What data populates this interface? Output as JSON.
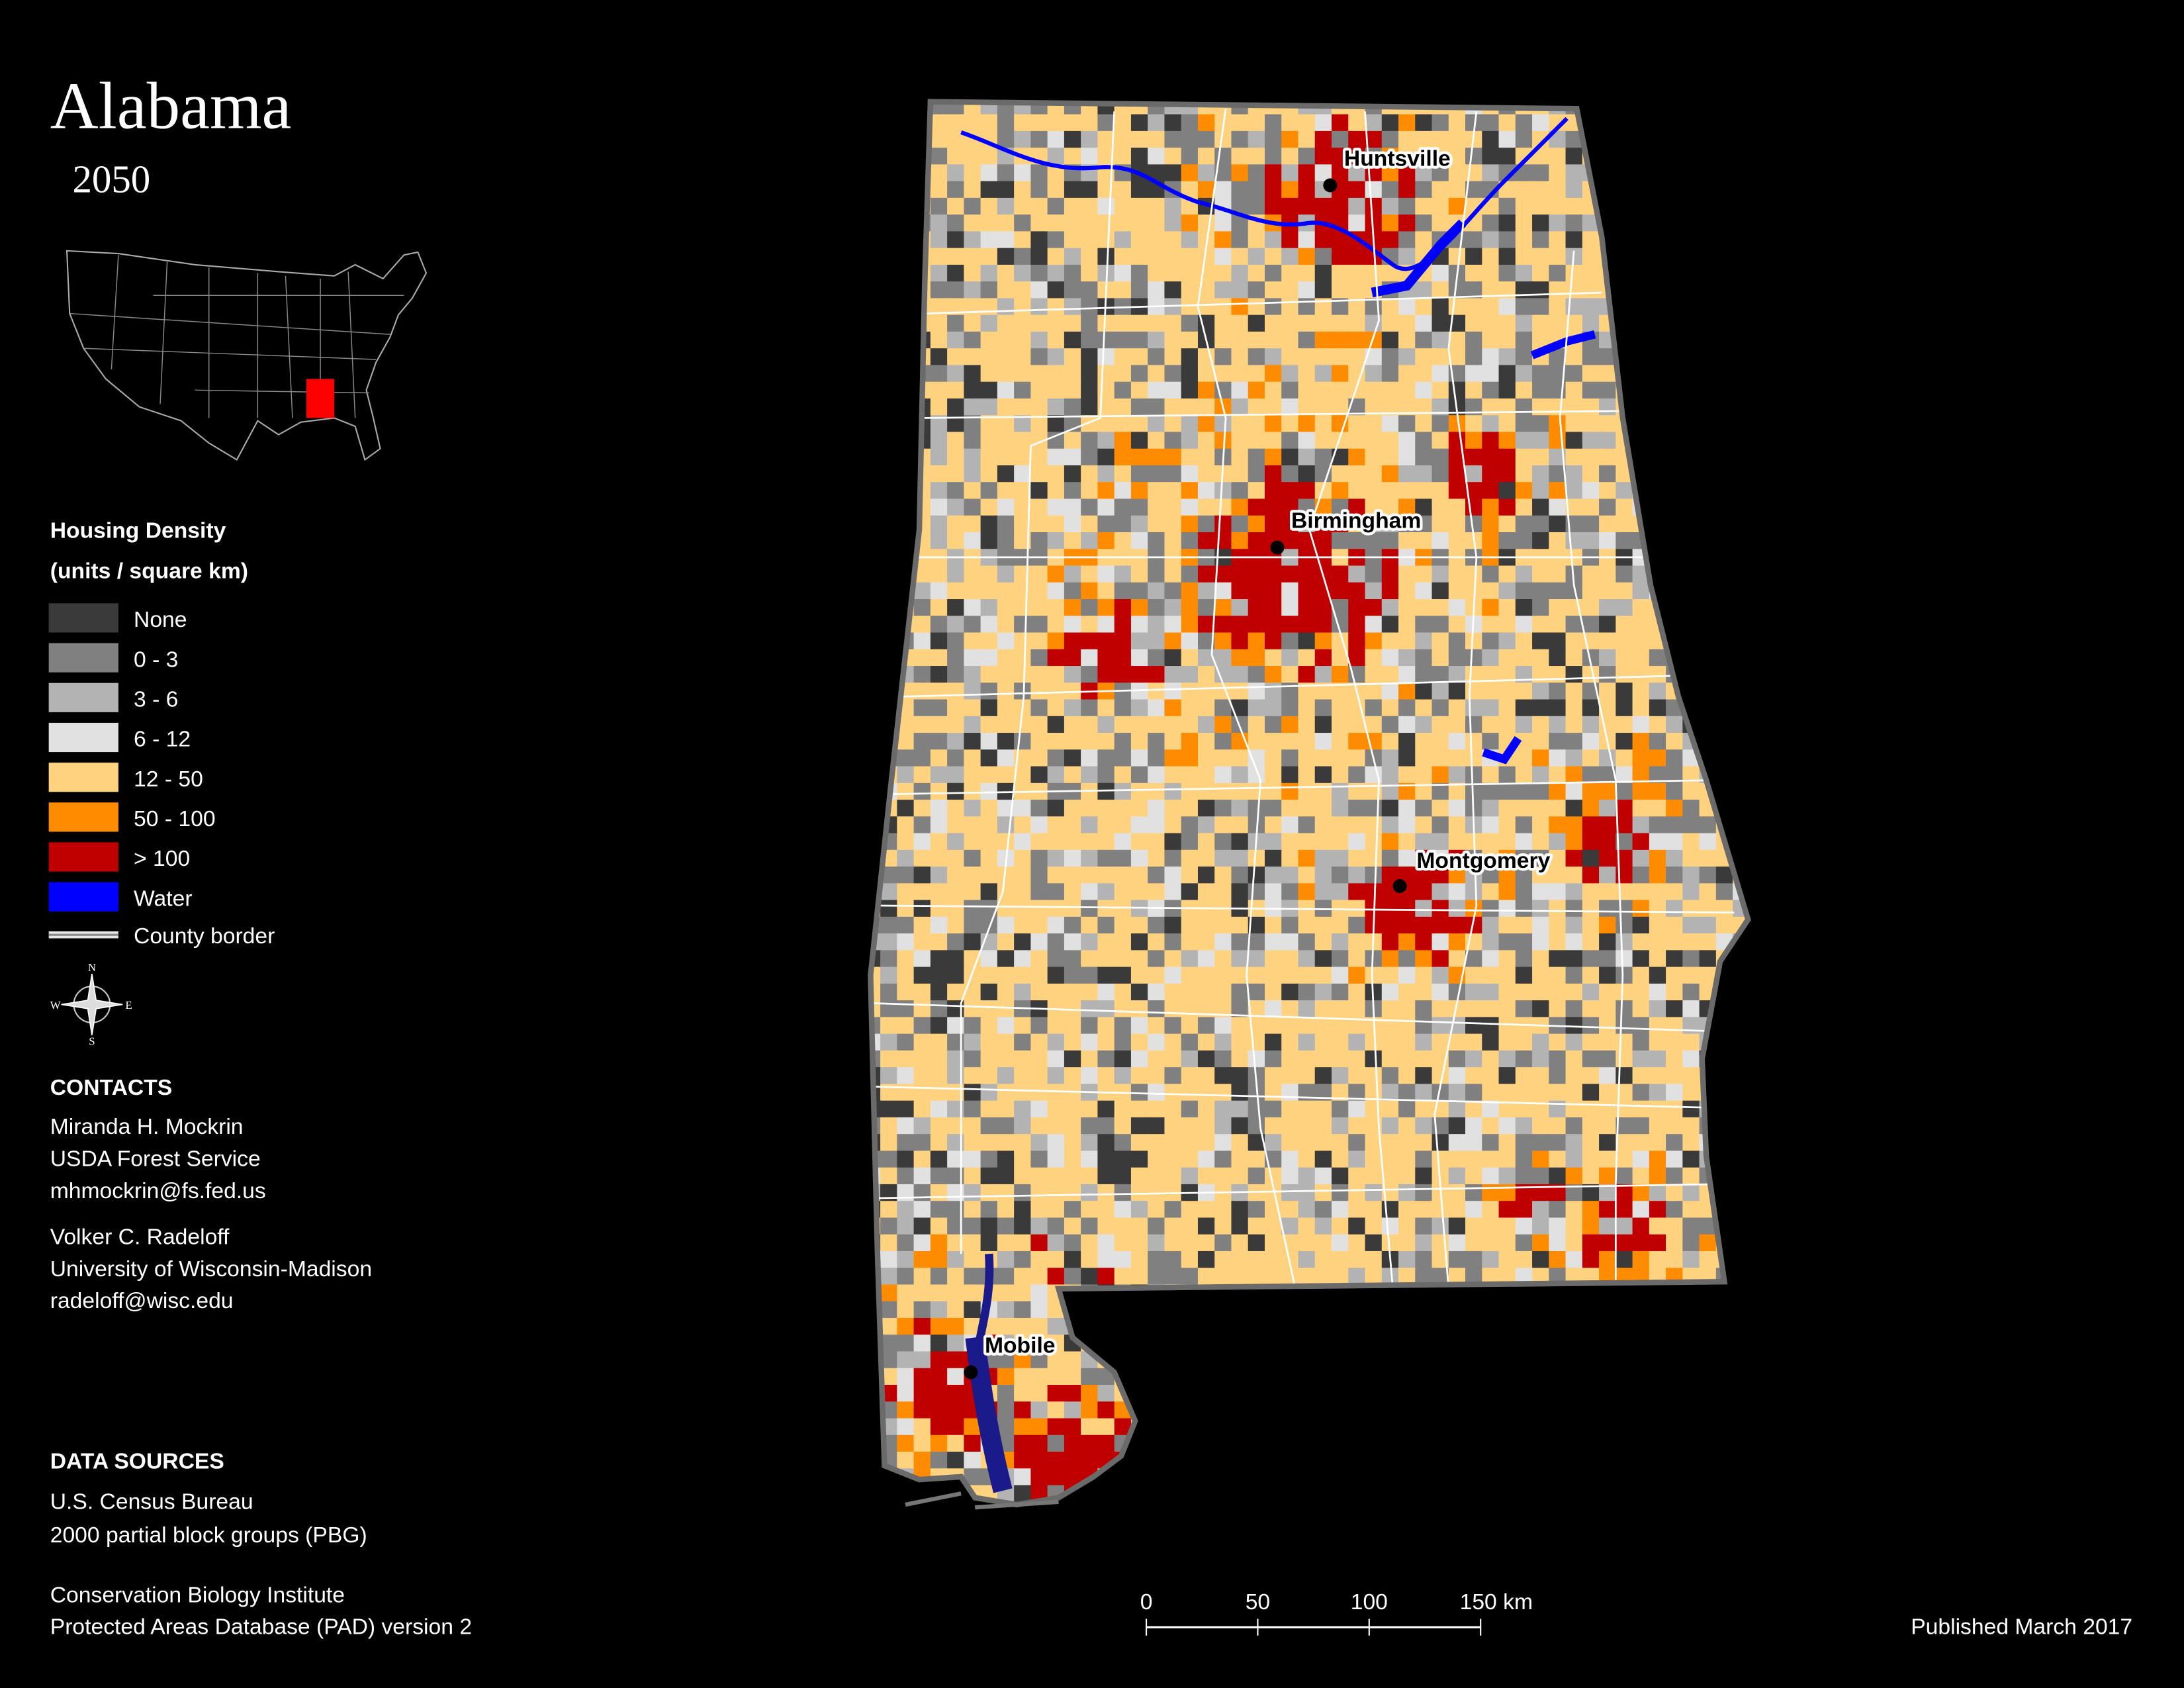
{
  "title": "Alabama",
  "subtitle": "2050",
  "legend": {
    "title": "Housing Density",
    "units": "(units / square km)",
    "items": [
      {
        "label": "None",
        "color": "#3a3a3a"
      },
      {
        "label": "0 - 3",
        "color": "#808080"
      },
      {
        "label": "3 - 6",
        "color": "#b3b3b3"
      },
      {
        "label": "6 - 12",
        "color": "#e1e1e1"
      },
      {
        "label": "12 - 50",
        "color": "#ffd280"
      },
      {
        "label": "50 - 100",
        "color": "#ff8c00"
      },
      {
        "label": "> 100",
        "color": "#c00000"
      },
      {
        "label": "Water",
        "color": "#0000ff"
      }
    ],
    "border": {
      "label": "County border",
      "color": "#e8e8e8"
    }
  },
  "compass": {
    "n": "N",
    "e": "E",
    "s": "S",
    "w": "W"
  },
  "cities": [
    "Huntsville",
    "Birmingham",
    "Montgomery",
    "Mobile"
  ],
  "contacts": {
    "heading": "CONTACTS",
    "people": [
      [
        "Miranda H. Mockrin",
        "USDA Forest Service",
        "mhmockrin@fs.fed.us"
      ],
      [
        "Volker C. Radeloff",
        "University of Wisconsin-Madison",
        "radeloff@wisc.edu"
      ]
    ]
  },
  "sources": {
    "heading": "DATA SOURCES",
    "lines": [
      "U.S. Census Bureau",
      "2000 partial block groups (PBG)",
      "Conservation Biology Institute",
      "Protected Areas Database (PAD) version 2"
    ]
  },
  "scale_bar": {
    "labels": [
      "0",
      "50",
      "100",
      "150 km"
    ]
  },
  "published": "Published March 2017"
}
